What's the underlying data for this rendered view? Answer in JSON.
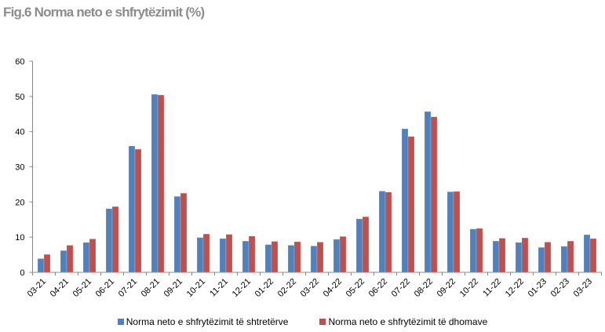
{
  "chart_data": {
    "type": "bar",
    "title": "Fig.6 Norma neto e shfrytëzimit (%)",
    "xlabel": "",
    "ylabel": "",
    "ylim": [
      0,
      60
    ],
    "yticks": [
      0,
      10,
      20,
      30,
      40,
      50,
      60
    ],
    "grid": false,
    "legend_position": "bottom",
    "categories": [
      "03-21",
      "04-21",
      "05-21",
      "06-21",
      "07-21",
      "08-21",
      "09-21",
      "10-21",
      "11-21",
      "12-21",
      "01-22",
      "02-22",
      "03-22",
      "04-22",
      "05-22",
      "06-22",
      "07-22",
      "08-22",
      "09-22",
      "10-22",
      "11-22",
      "12-22",
      "01-23",
      "02-23",
      "03-23"
    ],
    "series": [
      {
        "name": "Norma neto e shfrytëzimit të shtretërve",
        "color": "#4f81bd",
        "values": [
          3.9,
          6.2,
          8.5,
          18.1,
          35.9,
          50.6,
          21.6,
          9.9,
          9.6,
          8.9,
          7.9,
          7.7,
          7.5,
          9.4,
          15.2,
          23.1,
          40.8,
          45.7,
          22.9,
          12.3,
          8.9,
          8.5,
          7.1,
          7.4,
          10.7
        ]
      },
      {
        "name": "Norma neto e shfrytëzimit të dhomave",
        "color": "#c0504d",
        "values": [
          5.1,
          7.7,
          9.5,
          18.7,
          35.0,
          50.4,
          22.5,
          10.9,
          10.8,
          10.3,
          8.8,
          8.7,
          8.6,
          10.2,
          15.8,
          22.8,
          38.6,
          44.2,
          23.0,
          12.5,
          9.7,
          9.8,
          8.6,
          8.9,
          9.6
        ]
      }
    ]
  }
}
